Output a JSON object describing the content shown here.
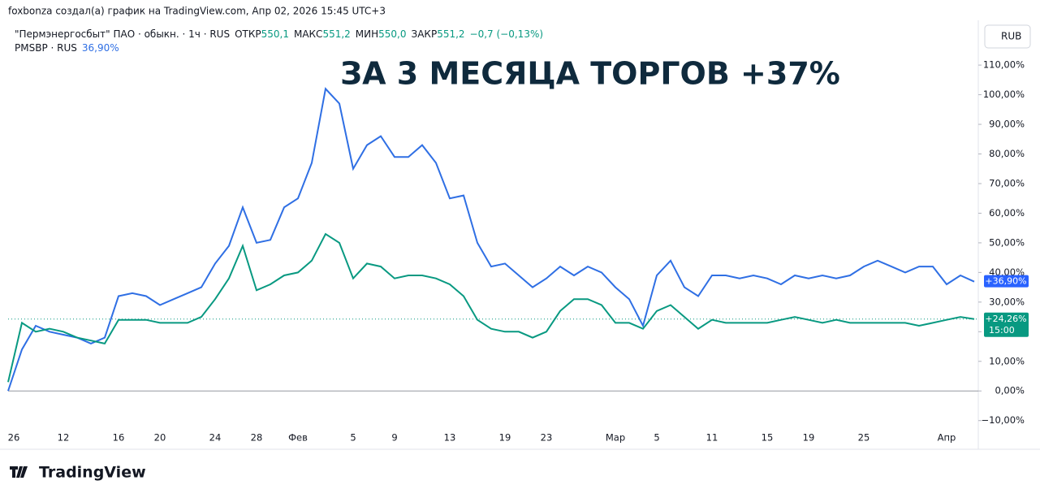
{
  "header": "foxbonza создал(а) график на TradingView.com, Апр 02, 2026 15:45 UTC+3",
  "legend": {
    "symbol": "\"Пермэнергосбыт\" ПАО · обыкн. · 1ч · RUS",
    "open_label": "ОТКР",
    "open": "550,1",
    "high_label": "МАКС",
    "high": "551,2",
    "low_label": "МИН",
    "low": "550,0",
    "close_label": "ЗАКР",
    "close": "551,2",
    "change": "−0,7 (−0,13%)",
    "compare": "PMSBP · RUS",
    "compare_value": "36,90%"
  },
  "currency": "RUB",
  "countdown": "15:00",
  "logo": "TradingView",
  "chart_data": {
    "type": "line",
    "title": "ЗА 3 МЕСЯЦА ТОРГОВ +37%",
    "categories": [
      "26",
      null,
      null,
      null,
      "12",
      null,
      null,
      null,
      "16",
      null,
      null,
      "20",
      null,
      null,
      null,
      "24",
      null,
      null,
      "28",
      null,
      null,
      "Фев",
      null,
      null,
      null,
      "5",
      null,
      null,
      "9",
      null,
      null,
      null,
      "13",
      null,
      null,
      null,
      "19",
      null,
      null,
      "23",
      null,
      null,
      null,
      null,
      "Мар",
      null,
      null,
      "5",
      null,
      null,
      null,
      "11",
      null,
      null,
      null,
      "15",
      null,
      null,
      "19",
      null,
      null,
      null,
      "25",
      null,
      null,
      null,
      null,
      null,
      "Апр",
      null,
      null
    ],
    "series": [
      {
        "name": "PMSBP",
        "color": "#2f6fe4",
        "last_label": "+36,90%",
        "values": [
          0,
          14,
          22,
          20,
          19,
          18,
          16,
          18,
          32,
          33,
          32,
          29,
          31,
          33,
          35,
          43,
          49,
          62,
          50,
          51,
          62,
          65,
          77,
          102,
          97,
          75,
          83,
          86,
          79,
          79,
          83,
          77,
          65,
          66,
          50,
          42,
          43,
          39,
          35,
          38,
          42,
          39,
          42,
          40,
          35,
          31,
          22,
          39,
          44,
          35,
          32,
          39,
          39,
          38,
          39,
          38,
          36,
          39,
          38,
          39,
          38,
          39,
          42,
          44,
          42,
          40,
          42,
          42,
          36,
          39,
          36.9
        ]
      },
      {
        "name": "Пермэнергосбыт",
        "color": "#089981",
        "last_label": "+24,26%",
        "values": [
          3,
          23,
          20,
          21,
          20,
          18,
          17,
          16,
          24,
          24,
          24,
          23,
          23,
          23,
          25,
          31,
          38,
          49,
          34,
          36,
          39,
          40,
          44,
          53,
          50,
          38,
          43,
          42,
          38,
          39,
          39,
          38,
          36,
          32,
          24,
          21,
          20,
          20,
          18,
          20,
          27,
          31,
          31,
          29,
          23,
          23,
          21,
          27,
          29,
          25,
          21,
          24,
          23,
          23,
          23,
          23,
          24,
          25,
          24,
          23,
          24,
          23,
          23,
          23,
          23,
          23,
          22,
          23,
          24,
          25,
          24.26
        ]
      }
    ],
    "ylim": [
      -12,
      121
    ],
    "yticks": [
      {
        "value": -10,
        "label": "−10,00%"
      },
      {
        "value": 0,
        "label": "0,00%"
      },
      {
        "value": 10,
        "label": "10,00%"
      },
      {
        "value": 20,
        "label": "20,00%"
      },
      {
        "value": 30,
        "label": "30,00%"
      },
      {
        "value": 40,
        "label": "40,00%"
      },
      {
        "value": 50,
        "label": "50,00%"
      },
      {
        "value": 60,
        "label": "60,00%"
      },
      {
        "value": 70,
        "label": "70,00%"
      },
      {
        "value": 80,
        "label": "80,00%"
      },
      {
        "value": 90,
        "label": "90,00%"
      },
      {
        "value": 100,
        "label": "100,00%"
      },
      {
        "value": 110,
        "label": "110,00%"
      }
    ],
    "zero_line": 0
  }
}
